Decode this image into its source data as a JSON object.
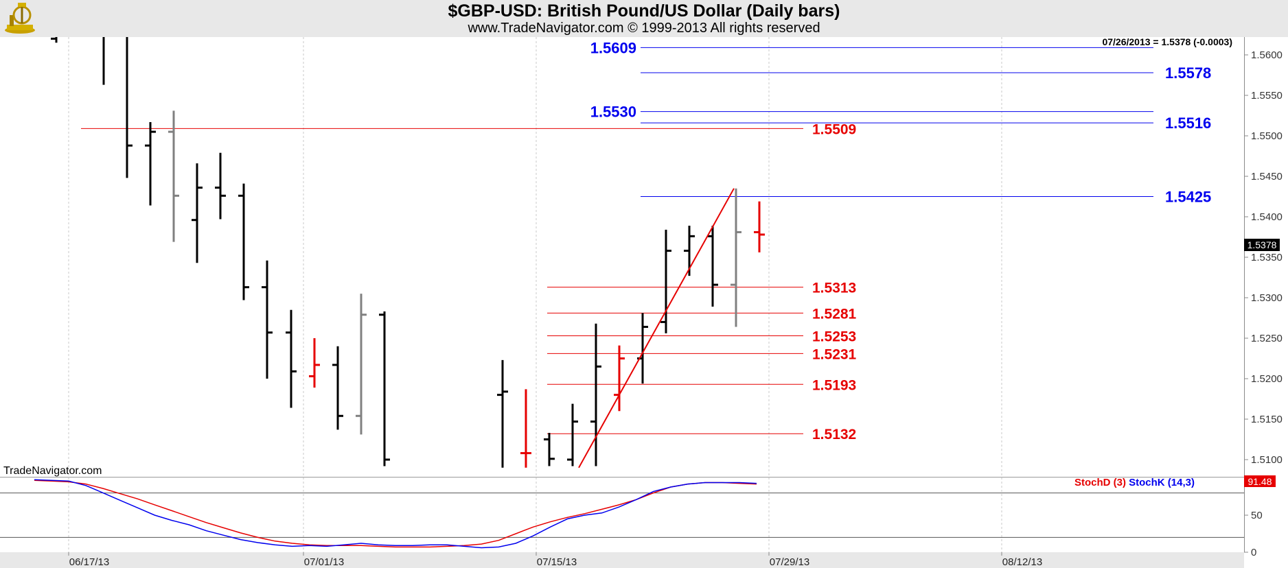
{
  "header": {
    "title": "$GBP-USD:  British Pound/US Dollar  (Daily bars)",
    "subtitle": "www.TradeNavigator.com © 1999-2013 All rights reserved"
  },
  "quote_info": "07/26/2013 = 1.5378 (-0.0003)",
  "last_price_label": "1.5378",
  "watermark": "TradeNavigator.com",
  "colors": {
    "up_bar": "#000000",
    "gray_bar": "#808080",
    "red_bar": "#e60000",
    "blue_level": "#0000ee",
    "red_level": "#e60000"
  },
  "chart_data": [
    {
      "type": "ohlc",
      "y_ticks": [
        "1.5100",
        "1.5150",
        "1.5200",
        "1.5250",
        "1.5300",
        "1.5350",
        "1.5400",
        "1.5450",
        "1.5500",
        "1.5550",
        "1.5600"
      ],
      "x_ticks": [
        "06/17/13",
        "07/01/13",
        "07/15/13",
        "07/29/13",
        "08/12/13"
      ],
      "ylim": [
        1.5085,
        1.5635
      ],
      "bars": [
        {
          "o": 1.562,
          "h": 1.568,
          "l": 1.5615,
          "c": 1.563,
          "color": "black"
        },
        {
          "o": 1.564,
          "h": 1.568,
          "l": 1.5563,
          "c": 1.565,
          "color": "black"
        },
        {
          "o": 1.564,
          "h": 1.568,
          "l": 1.5448,
          "c": 1.5488,
          "color": "black"
        },
        {
          "o": 1.5488,
          "h": 1.5517,
          "l": 1.5414,
          "c": 1.5505,
          "color": "black"
        },
        {
          "o": 1.5505,
          "h": 1.5531,
          "l": 1.5369,
          "c": 1.5426,
          "color": "gray"
        },
        {
          "o": 1.5396,
          "h": 1.5466,
          "l": 1.5343,
          "c": 1.5436,
          "color": "black"
        },
        {
          "o": 1.5436,
          "h": 1.5479,
          "l": 1.5397,
          "c": 1.5426,
          "color": "black"
        },
        {
          "o": 1.5426,
          "h": 1.5441,
          "l": 1.5297,
          "c": 1.5313,
          "color": "black"
        },
        {
          "o": 1.5313,
          "h": 1.5346,
          "l": 1.52,
          "c": 1.5257,
          "color": "black"
        },
        {
          "o": 1.5257,
          "h": 1.5285,
          "l": 1.5164,
          "c": 1.5209,
          "color": "black"
        },
        {
          "o": 1.5203,
          "h": 1.525,
          "l": 1.5189,
          "c": 1.5217,
          "color": "red"
        },
        {
          "o": 1.5217,
          "h": 1.524,
          "l": 1.5137,
          "c": 1.5154,
          "color": "black"
        },
        {
          "o": 1.5154,
          "h": 1.5305,
          "l": 1.5131,
          "c": 1.5279,
          "color": "gray"
        },
        {
          "o": 1.5279,
          "h": 1.5283,
          "l": 1.5092,
          "c": 1.51,
          "color": "black"
        },
        {
          "o": 1.518,
          "h": 1.5223,
          "l": 1.509,
          "c": 1.5184,
          "color": "black"
        },
        {
          "o": 1.5108,
          "h": 1.5187,
          "l": 1.509,
          "c": 1.5108,
          "color": "red"
        },
        {
          "o": 1.5125,
          "h": 1.5133,
          "l": 1.5092,
          "c": 1.5101,
          "color": "black"
        },
        {
          "o": 1.51,
          "h": 1.5169,
          "l": 1.5092,
          "c": 1.5147,
          "color": "black"
        },
        {
          "o": 1.5147,
          "h": 1.5268,
          "l": 1.5092,
          "c": 1.5215,
          "color": "black"
        },
        {
          "o": 1.518,
          "h": 1.5241,
          "l": 1.516,
          "c": 1.5225,
          "color": "red"
        },
        {
          "o": 1.5225,
          "h": 1.5281,
          "l": 1.5194,
          "c": 1.5264,
          "color": "black"
        },
        {
          "o": 1.527,
          "h": 1.5384,
          "l": 1.5256,
          "c": 1.5358,
          "color": "black"
        },
        {
          "o": 1.5358,
          "h": 1.5389,
          "l": 1.5327,
          "c": 1.5376,
          "color": "black"
        },
        {
          "o": 1.5376,
          "h": 1.5389,
          "l": 1.5289,
          "c": 1.5316,
          "color": "black"
        },
        {
          "o": 1.5316,
          "h": 1.5435,
          "l": 1.5264,
          "c": 1.5381,
          "color": "gray"
        },
        {
          "o": 1.5381,
          "h": 1.5419,
          "l": 1.5356,
          "c": 1.5378,
          "color": "red"
        }
      ],
      "blue_levels": [
        "1.5609",
        "1.5578",
        "1.5530",
        "1.5516",
        "1.5425"
      ],
      "red_levels": [
        "1.5509",
        "1.5313",
        "1.5281",
        "1.5253",
        "1.5231",
        "1.5193",
        "1.5132"
      ],
      "trendline": {
        "from": 1.509,
        "to": 1.5435
      }
    },
    {
      "type": "line",
      "indicator": "stochastic",
      "series": [
        {
          "name": "StochD (3)",
          "color": "#e60000",
          "values": [
            97,
            96,
            95,
            92,
            86,
            79,
            72,
            64,
            56,
            48,
            40,
            33,
            26,
            20,
            15,
            12,
            10,
            9,
            9,
            9,
            8,
            7,
            7,
            7,
            8,
            9,
            11,
            16,
            25,
            34,
            41,
            47,
            52,
            58,
            64,
            71,
            80,
            88,
            92,
            94,
            94,
            93,
            92
          ]
        },
        {
          "name": "StochK (14,3)",
          "color": "#0000ee",
          "values": [
            98,
            97,
            96,
            90,
            80,
            70,
            60,
            50,
            43,
            37,
            29,
            23,
            17,
            13,
            10,
            8,
            9,
            8,
            10,
            12,
            10,
            9,
            9,
            10,
            10,
            8,
            6,
            7,
            12,
            22,
            34,
            45,
            50,
            53,
            61,
            71,
            82,
            88,
            92,
            94,
            94,
            94,
            93
          ]
        }
      ],
      "last_value": "91.48",
      "y_ticks": [
        "0",
        "50"
      ],
      "ylim": [
        0,
        100
      ]
    }
  ]
}
